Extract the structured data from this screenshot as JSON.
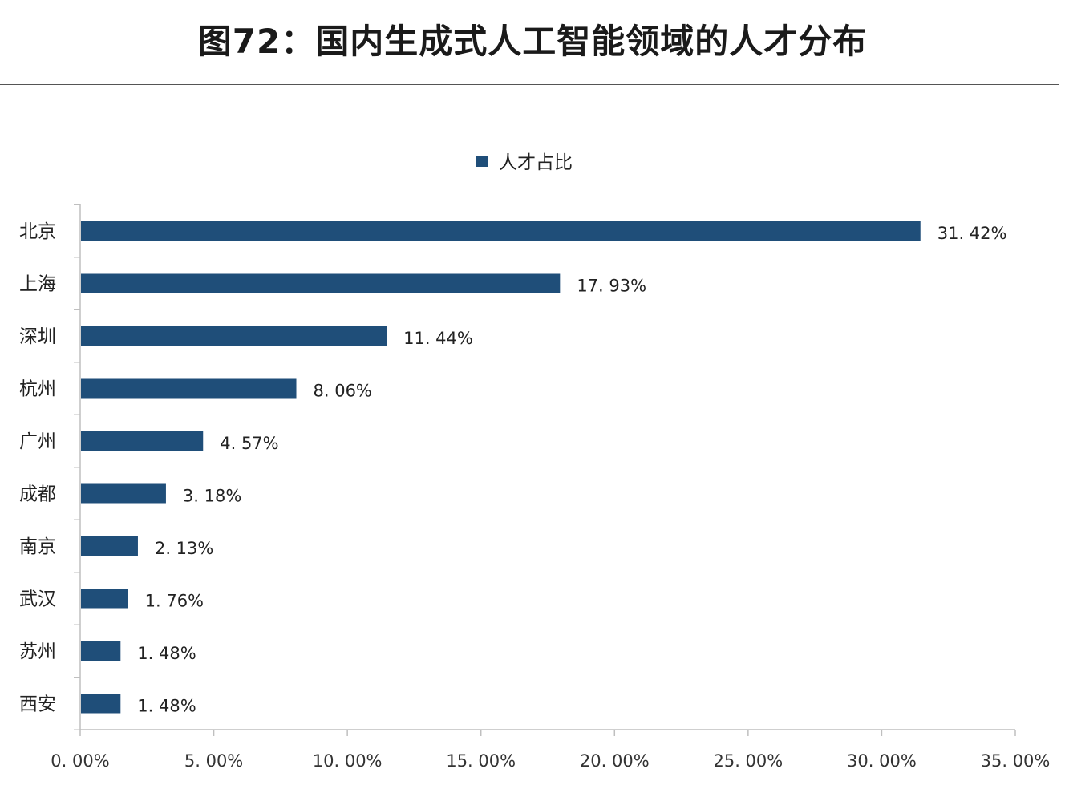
{
  "title": "图72：国内生成式人工智能领域的人才分布",
  "chart_data": {
    "type": "bar",
    "orientation": "horizontal",
    "categories": [
      "北京",
      "上海",
      "深圳",
      "杭州",
      "广州",
      "成都",
      "南京",
      "武汉",
      "苏州",
      "西安"
    ],
    "series": [
      {
        "name": "人才占比",
        "values": [
          31.42,
          17.93,
          11.44,
          8.06,
          4.57,
          3.18,
          2.13,
          1.76,
          1.48,
          1.48
        ],
        "labels": [
          "31. 42%",
          "17. 93%",
          "11. 44%",
          "8. 06%",
          "4. 57%",
          "3. 18%",
          "2. 13%",
          "1. 76%",
          "1. 48%",
          "1. 48%"
        ]
      }
    ],
    "xlim": [
      0,
      35
    ],
    "xticks": [
      0,
      5,
      10,
      15,
      20,
      25,
      30,
      35
    ],
    "xtick_labels": [
      "0. 00%",
      "5. 00%",
      "10. 00%",
      "15. 00%",
      "20. 00%",
      "25. 00%",
      "30. 00%",
      "35. 00%"
    ],
    "legend_position": "top-center",
    "grid": false,
    "bar_color": "#1f4e79"
  }
}
